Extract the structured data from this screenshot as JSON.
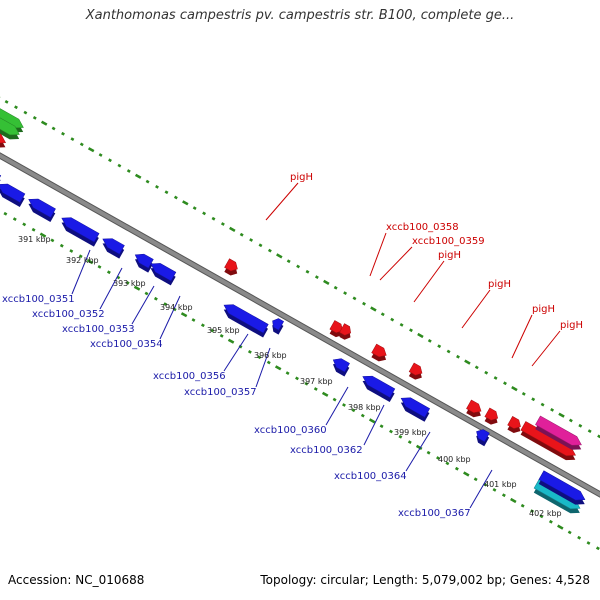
{
  "header": {
    "title": "Xanthomonas campestris pv. campestris str. B100, complete ge..."
  },
  "footer": {
    "accession": "Accession: NC_010688",
    "summary": "Topology: circular; Length: 5,079,002 bp; Genes: 4,528"
  },
  "colors": {
    "backbone": "#8a8a8a",
    "dots": "#2e8b1f",
    "forward_strand_gene": "#e8141a",
    "reverse_strand_gene": "#1a1ae6",
    "label_forward": "#cc0000",
    "label_reverse": "#1a1aa8",
    "kbp_text": "#222222",
    "highlight_pink": "#e0209a",
    "highlight_cyan": "#19b9c8",
    "highlight_green": "#35c035",
    "highlight_khaki": "#b8b070"
  },
  "kbp_ticks": [
    "391 kbp",
    "392 kbp",
    "393 kbp",
    "394 kbp",
    "395 kbp",
    "396 kbp",
    "397 kbp",
    "398 kbp",
    "399 kbp",
    "400 kbp",
    "401 kbp",
    "402 kbp"
  ],
  "forward_labels": [
    "pigH",
    "xccb100_0358",
    "xccb100_0359",
    "pigH",
    "pigH",
    "pigH",
    "pigH"
  ],
  "reverse_labels": [
    "xccb100_0351",
    "xccb100_0352",
    "xccb100_0353",
    "xccb100_0354",
    "xccb100_0356",
    "xccb100_0357",
    "xccb100_0360",
    "xccb100_0362",
    "xccb100_0364",
    "xccb100_0367"
  ]
}
